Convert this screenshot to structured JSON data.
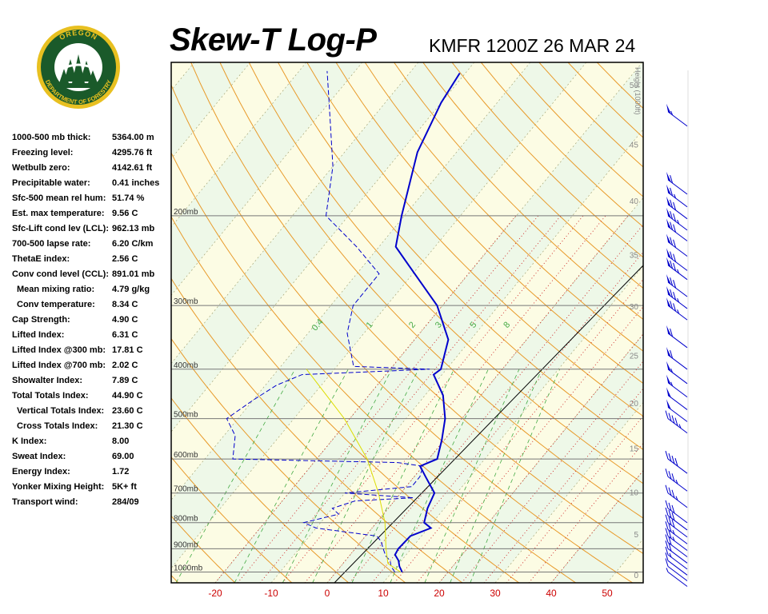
{
  "header": {
    "title": "Skew-T Log-P",
    "station": "KMFR 1200Z 26 MAR 24"
  },
  "logo": {
    "top_text": "OREGON",
    "bottom_text": "DEPARTMENT OF FORESTRY",
    "colors": {
      "ring": "#1a5a2a",
      "gold": "#e8c020"
    }
  },
  "indices": [
    {
      "label": "1000-500 mb thick:",
      "value": "5364.00 m",
      "indent": false
    },
    {
      "label": "Freezing level:",
      "value": "4295.76 ft",
      "indent": false
    },
    {
      "label": "Wetbulb zero:",
      "value": "4142.61 ft",
      "indent": false
    },
    {
      "label": "Precipitable water:",
      "value": "0.41 inches",
      "indent": false
    },
    {
      "label": "Sfc-500 mean rel hum:",
      "value": "51.74 %",
      "indent": false
    },
    {
      "label": "Est. max temperature:",
      "value": "9.56 C",
      "indent": false
    },
    {
      "label": "Sfc-Lift cond lev (LCL):",
      "value": "962.13 mb",
      "indent": false
    },
    {
      "label": "700-500 lapse rate:",
      "value": "6.20 C/km",
      "indent": false
    },
    {
      "label": "ThetaE index:",
      "value": "2.56 C",
      "indent": false
    },
    {
      "label": "Conv cond level (CCL):",
      "value": "891.01 mb",
      "indent": false
    },
    {
      "label": "Mean mixing ratio:",
      "value": "4.79 g/kg",
      "indent": true
    },
    {
      "label": "Conv temperature:",
      "value": "8.34 C",
      "indent": true
    },
    {
      "label": "Cap Strength:",
      "value": "4.90 C",
      "indent": false
    },
    {
      "label": "Lifted Index:",
      "value": "6.31 C",
      "indent": false
    },
    {
      "label": "Lifted Index @300 mb:",
      "value": "17.81 C",
      "indent": false
    },
    {
      "label": "Lifted Index @700 mb:",
      "value": "2.02 C",
      "indent": false
    },
    {
      "label": "Showalter Index:",
      "value": "7.89 C",
      "indent": false
    },
    {
      "label": "Total Totals Index:",
      "value": "44.90 C",
      "indent": false
    },
    {
      "label": "Vertical Totals Index:",
      "value": "23.60 C",
      "indent": true
    },
    {
      "label": "Cross Totals Index:",
      "value": "21.30 C",
      "indent": true
    },
    {
      "label": "K Index:",
      "value": "8.00",
      "indent": false
    },
    {
      "label": "Sweat Index:",
      "value": "69.00",
      "indent": false
    },
    {
      "label": "Energy Index:",
      "value": "1.72",
      "indent": false
    },
    {
      "label": "Yonker Mixing Height:",
      "value": "5K+ ft",
      "indent": false
    },
    {
      "label": "Transport wind:",
      "value": "284/09",
      "indent": false
    }
  ],
  "chart_data": {
    "type": "line",
    "title": "Skew-T Log-P",
    "x_axis": {
      "label": "",
      "ticks": [
        -20,
        -10,
        0,
        10,
        20,
        30,
        40,
        50
      ],
      "range": [
        -29,
        56
      ],
      "unit": "C",
      "tick_color": "#cc0000"
    },
    "y_axis": {
      "label": "",
      "scale": "log",
      "range_mb": [
        1050,
        100
      ],
      "pressure_ticks": [
        {
          "p": 1000,
          "label": "1000mb"
        },
        {
          "p": 900,
          "label": "900mb"
        },
        {
          "p": 800,
          "label": "800mb"
        },
        {
          "p": 700,
          "label": "700mb"
        },
        {
          "p": 600,
          "label": "600mb"
        },
        {
          "p": 500,
          "label": "500mb"
        },
        {
          "p": 400,
          "label": "400mb"
        },
        {
          "p": 300,
          "label": "300mb"
        },
        {
          "p": 200,
          "label": "200mb"
        }
      ]
    },
    "height_axis": {
      "label": "Height (1000ft)",
      "ticks": [
        0,
        5,
        10,
        15,
        20,
        25,
        30,
        35,
        40,
        45,
        50
      ]
    },
    "mixing_ratio_labels": [
      "0.4",
      "1",
      "2",
      "3",
      "5",
      "8"
    ],
    "series": [
      {
        "kind": "temperature",
        "color": "#0000cc",
        "style": "solid",
        "points": [
          [
            1000,
            11.8
          ],
          [
            975,
            10.5
          ],
          [
            950,
            9.5
          ],
          [
            925,
            8.0
          ],
          [
            900,
            7.7
          ],
          [
            850,
            8.0
          ],
          [
            820,
            10.5
          ],
          [
            800,
            8.5
          ],
          [
            750,
            7.0
          ],
          [
            700,
            6.0
          ],
          [
            650,
            2.0
          ],
          [
            620,
            -0.5
          ],
          [
            600,
            1.5
          ],
          [
            550,
            -0.5
          ],
          [
            500,
            -3.0
          ],
          [
            450,
            -6.8
          ],
          [
            410,
            -11.5
          ],
          [
            400,
            -11.0
          ],
          [
            350,
            -14.0
          ],
          [
            300,
            -21.0
          ],
          [
            250,
            -32.0
          ],
          [
            230,
            -37.0
          ],
          [
            200,
            -40.5
          ],
          [
            150,
            -47.0
          ],
          [
            120,
            -50.0
          ],
          [
            105,
            -51.0
          ]
        ]
      },
      {
        "kind": "dewpoint",
        "color": "#0000cc",
        "style": "dashed",
        "points": [
          [
            1000,
            10.5
          ],
          [
            975,
            9.0
          ],
          [
            950,
            8.0
          ],
          [
            930,
            6.5
          ],
          [
            900,
            5.0
          ],
          [
            870,
            3.5
          ],
          [
            850,
            2.0
          ],
          [
            820,
            -10.0
          ],
          [
            800,
            -13.0
          ],
          [
            770,
            -8.0
          ],
          [
            750,
            -10.0
          ],
          [
            725,
            -7.0
          ],
          [
            715,
            3.0
          ],
          [
            700,
            -10.0
          ],
          [
            680,
            1.0
          ],
          [
            650,
            1.0
          ],
          [
            620,
            0.0
          ],
          [
            610,
            -5.0
          ],
          [
            600,
            -35.0
          ],
          [
            540,
            -38.0
          ],
          [
            500,
            -42.0
          ],
          [
            460,
            -40.0
          ],
          [
            430,
            -38.0
          ],
          [
            410,
            -35.0
          ],
          [
            400,
            -13.0
          ],
          [
            395,
            -27.0
          ],
          [
            340,
            -33.0
          ],
          [
            300,
            -36.0
          ],
          [
            260,
            -36.0
          ],
          [
            230,
            -44.0
          ],
          [
            200,
            -54.0
          ],
          [
            160,
            -60.0
          ],
          [
            120,
            -70.0
          ],
          [
            104,
            -75.0
          ]
        ]
      },
      {
        "kind": "parcel",
        "color": "#dddd00",
        "style": "solid",
        "points": [
          [
            1000,
            11.5
          ],
          [
            962,
            8.0
          ],
          [
            900,
            5.5
          ],
          [
            800,
            1.5
          ],
          [
            700,
            -4.0
          ],
          [
            600,
            -11.0
          ],
          [
            500,
            -21.0
          ],
          [
            400,
            -35.0
          ]
        ]
      }
    ],
    "grid": true,
    "legend": "none"
  },
  "wind_barbs": {
    "color": "#0000cc",
    "levels": [
      {
        "p": 1000,
        "dir": "SW",
        "kt": 5
      },
      {
        "p": 975,
        "dir": "SW",
        "kt": 10
      },
      {
        "p": 950,
        "dir": "SW",
        "kt": 10
      },
      {
        "p": 925,
        "dir": "W",
        "kt": 15
      },
      {
        "p": 900,
        "dir": "W",
        "kt": 20
      },
      {
        "p": 875,
        "dir": "W",
        "kt": 20
      },
      {
        "p": 850,
        "dir": "W",
        "kt": 25
      },
      {
        "p": 825,
        "dir": "W",
        "kt": 25
      },
      {
        "p": 800,
        "dir": "W",
        "kt": 30
      },
      {
        "p": 775,
        "dir": "W",
        "kt": 30
      },
      {
        "p": 750,
        "dir": "W",
        "kt": 30
      },
      {
        "p": 700,
        "dir": "W",
        "kt": 35
      },
      {
        "p": 650,
        "dir": "W",
        "kt": 35
      },
      {
        "p": 600,
        "dir": "W",
        "kt": 40
      },
      {
        "p": 500,
        "dir": "W",
        "kt": 45
      },
      {
        "p": 475,
        "dir": "W",
        "kt": 50
      },
      {
        "p": 450,
        "dir": "W",
        "kt": 50
      },
      {
        "p": 425,
        "dir": "W",
        "kt": 55
      },
      {
        "p": 400,
        "dir": "W",
        "kt": 55
      },
      {
        "p": 375,
        "dir": "W",
        "kt": 60
      },
      {
        "p": 340,
        "dir": "W",
        "kt": 60
      },
      {
        "p": 300,
        "dir": "W",
        "kt": 75
      },
      {
        "p": 285,
        "dir": "W",
        "kt": 75
      },
      {
        "p": 270,
        "dir": "W",
        "kt": 70
      },
      {
        "p": 250,
        "dir": "W",
        "kt": 75
      },
      {
        "p": 240,
        "dir": "W",
        "kt": 70
      },
      {
        "p": 225,
        "dir": "W",
        "kt": 70
      },
      {
        "p": 210,
        "dir": "W",
        "kt": 70
      },
      {
        "p": 200,
        "dir": "W",
        "kt": 75
      },
      {
        "p": 190,
        "dir": "W",
        "kt": 70
      },
      {
        "p": 180,
        "dir": "W",
        "kt": 65
      },
      {
        "p": 170,
        "dir": "W",
        "kt": 60
      },
      {
        "p": 125,
        "dir": "W",
        "kt": 55
      }
    ]
  }
}
